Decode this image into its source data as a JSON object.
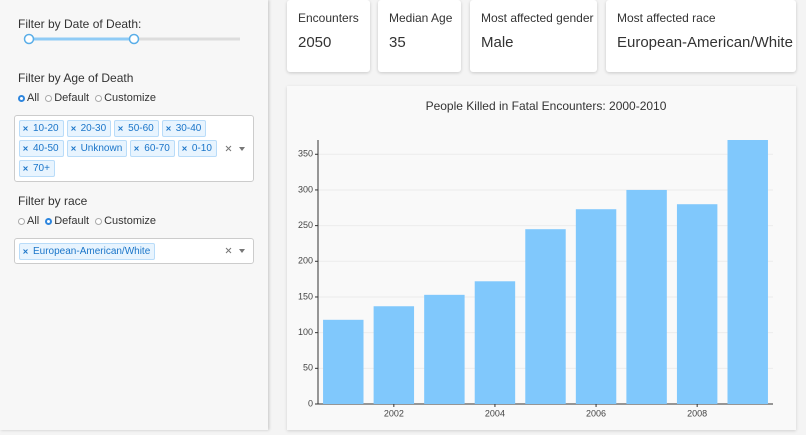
{
  "sidebar": {
    "date_filter": {
      "label": "Filter by Date of Death:"
    },
    "age_filter": {
      "label": "Filter by Age of Death",
      "options": [
        "All",
        "Default",
        "Customize"
      ],
      "selected": 0,
      "tags": [
        "10-20",
        "20-30",
        "50-60",
        "30-40",
        "40-50",
        "Unknown",
        "60-70",
        "0-10",
        "70+"
      ]
    },
    "race_filter": {
      "label": "Filter by race",
      "options": [
        "All",
        "Default",
        "Customize"
      ],
      "selected": 1,
      "tags": [
        "European-American/White"
      ]
    }
  },
  "cards": [
    {
      "label": "Encounters",
      "value": 2050
    },
    {
      "label": "Median Age",
      "value": 35
    },
    {
      "label": "Most affected gender",
      "value": "Male"
    },
    {
      "label": "Most affected race",
      "value": "European-American/White"
    }
  ],
  "chart_data": {
    "type": "bar",
    "title": "People Killed in Fatal Encounters: 2000-2010",
    "x": [
      2001,
      2002,
      2003,
      2004,
      2005,
      2006,
      2007,
      2008,
      2009
    ],
    "values": [
      118,
      137,
      153,
      172,
      245,
      273,
      300,
      280,
      370
    ],
    "color": "#80c8fc",
    "xlim": [
      2000.5,
      2009.5
    ],
    "xticks": [
      2002,
      2004,
      2006,
      2008
    ],
    "ylim": [
      0,
      370
    ],
    "yticks": [
      0,
      50,
      100,
      150,
      200,
      250,
      300,
      350
    ],
    "grid": true
  }
}
